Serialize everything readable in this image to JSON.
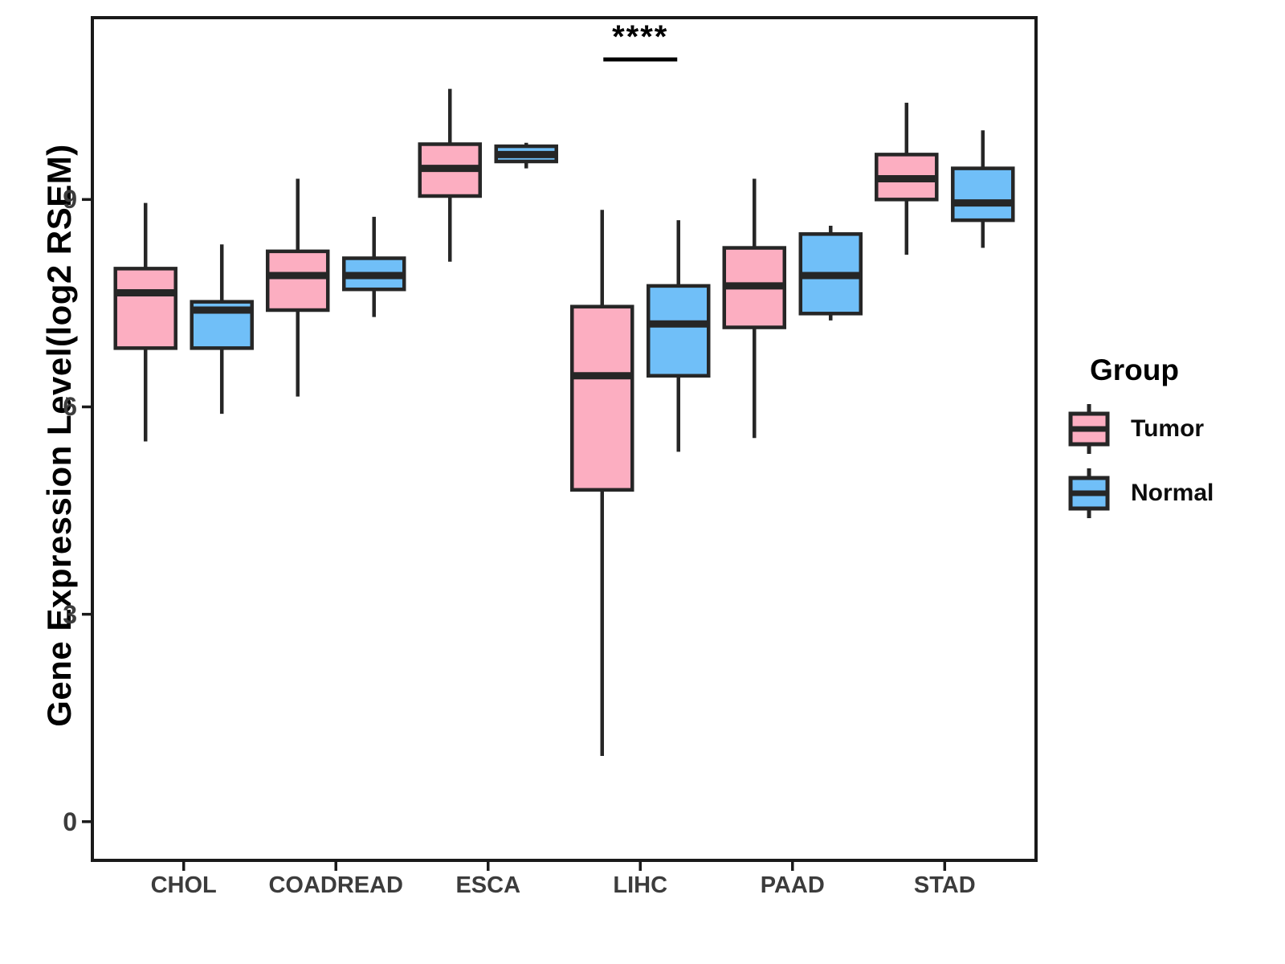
{
  "figure": {
    "y_axis": {
      "title": "Gene Expression Level(log2 RSEM)"
    },
    "legend": {
      "title": "Group",
      "items": [
        {
          "label": "Tumor",
          "color": "#FCAEC1"
        },
        {
          "label": "Normal",
          "color": "#70BFF8"
        }
      ]
    },
    "annotation": {
      "label": "****"
    }
  },
  "chart_data": {
    "type": "boxplot",
    "title": "",
    "xlabel": "",
    "ylabel": "Gene Expression Level(log2 RSEM)",
    "ylim": [
      -0.56,
      11.63
    ],
    "yticks": [
      0,
      3,
      6,
      9
    ],
    "grid": false,
    "legend_position": "right",
    "categories": [
      "CHOL",
      "COADREAD",
      "ESCA",
      "LIHC",
      "PAAD",
      "STAD"
    ],
    "series": [
      {
        "name": "Tumor",
        "color": "#FCAEC1",
        "stats": [
          {
            "whisker_low": 5.5,
            "q1": 6.85,
            "median": 7.65,
            "q3": 8.0,
            "whisker_high": 8.95
          },
          {
            "whisker_low": 6.15,
            "q1": 7.4,
            "median": 7.9,
            "q3": 8.25,
            "whisker_high": 9.3
          },
          {
            "whisker_low": 8.1,
            "q1": 9.05,
            "median": 9.45,
            "q3": 9.8,
            "whisker_high": 10.6
          },
          {
            "whisker_low": 0.95,
            "q1": 4.8,
            "median": 6.45,
            "q3": 7.45,
            "whisker_high": 8.85
          },
          {
            "whisker_low": 5.55,
            "q1": 7.15,
            "median": 7.75,
            "q3": 8.3,
            "whisker_high": 9.3
          },
          {
            "whisker_low": 8.2,
            "q1": 9.0,
            "median": 9.3,
            "q3": 9.65,
            "whisker_high": 10.4
          }
        ]
      },
      {
        "name": "Normal",
        "color": "#70BFF8",
        "stats": [
          {
            "whisker_low": 5.9,
            "q1": 6.85,
            "median": 7.4,
            "q3": 7.52,
            "whisker_high": 8.35
          },
          {
            "whisker_low": 7.3,
            "q1": 7.7,
            "median": 7.9,
            "q3": 8.15,
            "whisker_high": 8.75
          },
          {
            "whisker_low": 9.45,
            "q1": 9.55,
            "median": 9.65,
            "q3": 9.77,
            "whisker_high": 9.82
          },
          {
            "whisker_low": 5.35,
            "q1": 6.45,
            "median": 7.2,
            "q3": 7.75,
            "whisker_high": 8.7
          },
          {
            "whisker_low": 7.25,
            "q1": 7.35,
            "median": 7.9,
            "q3": 8.5,
            "whisker_high": 8.62
          },
          {
            "whisker_low": 8.3,
            "q1": 8.7,
            "median": 8.95,
            "q3": 9.45,
            "whisker_high": 10.0
          }
        ]
      }
    ],
    "significance": [
      {
        "category": "LIHC",
        "label": "****"
      }
    ]
  },
  "colors": {
    "box_line": "#262626",
    "panel_border": "#1A1A1A",
    "axis_tick": "#1A1A1A"
  }
}
